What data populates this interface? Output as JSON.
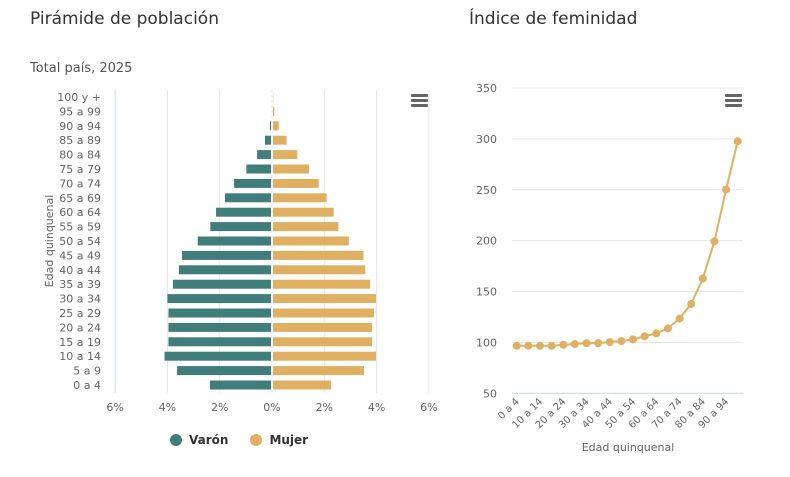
{
  "colors": {
    "male": "#417e7b",
    "female": "#dfb062",
    "line": "#dfb062",
    "grid": "#e6e6e6",
    "axis_text": "#666666"
  },
  "chart_data": [
    {
      "type": "bar",
      "orientation": "horizontal",
      "title": "Pirámide de población",
      "subtitle": "Total país, 2025",
      "ylabel": "Edad quinquenal",
      "xlabel": "",
      "xlim": [
        -6,
        6
      ],
      "xticks": [
        "6%",
        "4%",
        "2%",
        "0%",
        "2%",
        "4%",
        "6%"
      ],
      "categories": [
        "100 y +",
        "95 a 99",
        "90 a 94",
        "85 a 89",
        "80 a 84",
        "75 a 79",
        "70 a 74",
        "65 a 69",
        "60 a 64",
        "55 a 59",
        "50 a 54",
        "45 a 49",
        "40 a 44",
        "35 a 39",
        "30 a 34",
        "25 a 29",
        "20 a 24",
        "15 a 19",
        "10 a 14",
        "5 a 9",
        "0 a 4"
      ],
      "series": [
        {
          "name": "Varón",
          "values": [
            0.0,
            0.02,
            0.08,
            0.27,
            0.57,
            0.98,
            1.45,
            1.8,
            2.14,
            2.36,
            2.84,
            3.44,
            3.56,
            3.79,
            4.0,
            3.96,
            3.96,
            3.96,
            4.11,
            3.63,
            2.37
          ]
        },
        {
          "name": "Mujer",
          "values": [
            0.01,
            0.05,
            0.22,
            0.52,
            0.93,
            1.38,
            1.75,
            2.05,
            2.32,
            2.5,
            2.9,
            3.46,
            3.53,
            3.71,
            3.94,
            3.86,
            3.79,
            3.79,
            3.94,
            3.48,
            2.22
          ]
        }
      ],
      "legend": [
        "Varón",
        "Mujer"
      ],
      "legend_position": "bottom",
      "grid": true
    },
    {
      "type": "line",
      "title": "Índice de feminidad",
      "xlabel": "Edad quinquenal",
      "ylabel": "",
      "ylim": [
        50,
        350
      ],
      "yticks": [
        50,
        100,
        150,
        200,
        250,
        300,
        350
      ],
      "categories": [
        "0 a 4",
        "5 a 9",
        "10 a 14",
        "15 a 19",
        "20 a 24",
        "25 a 29",
        "30 a 34",
        "35 a 39",
        "40 a 44",
        "45 a 49",
        "50 a 54",
        "55 a 59",
        "60 a 64",
        "65 a 69",
        "70 a 74",
        "75 a 79",
        "80 a 84",
        "85 a 89",
        "90 a 94",
        "95 a 99"
      ],
      "xtick_labels_shown": [
        "0 a 4",
        "10 a 14",
        "20 a 24",
        "30 a 34",
        "40 a 44",
        "50 a 54",
        "60 a 64",
        "70 a 74",
        "80 a 84",
        "90 a 94"
      ],
      "values": [
        96.7,
        96.7,
        96.7,
        96.7,
        97.7,
        98.4,
        99.3,
        99.3,
        100.3,
        101.3,
        103,
        106,
        108.9,
        113.8,
        123.4,
        137.8,
        162.8,
        199.3,
        250.3,
        297.7
      ],
      "grid": true
    }
  ]
}
